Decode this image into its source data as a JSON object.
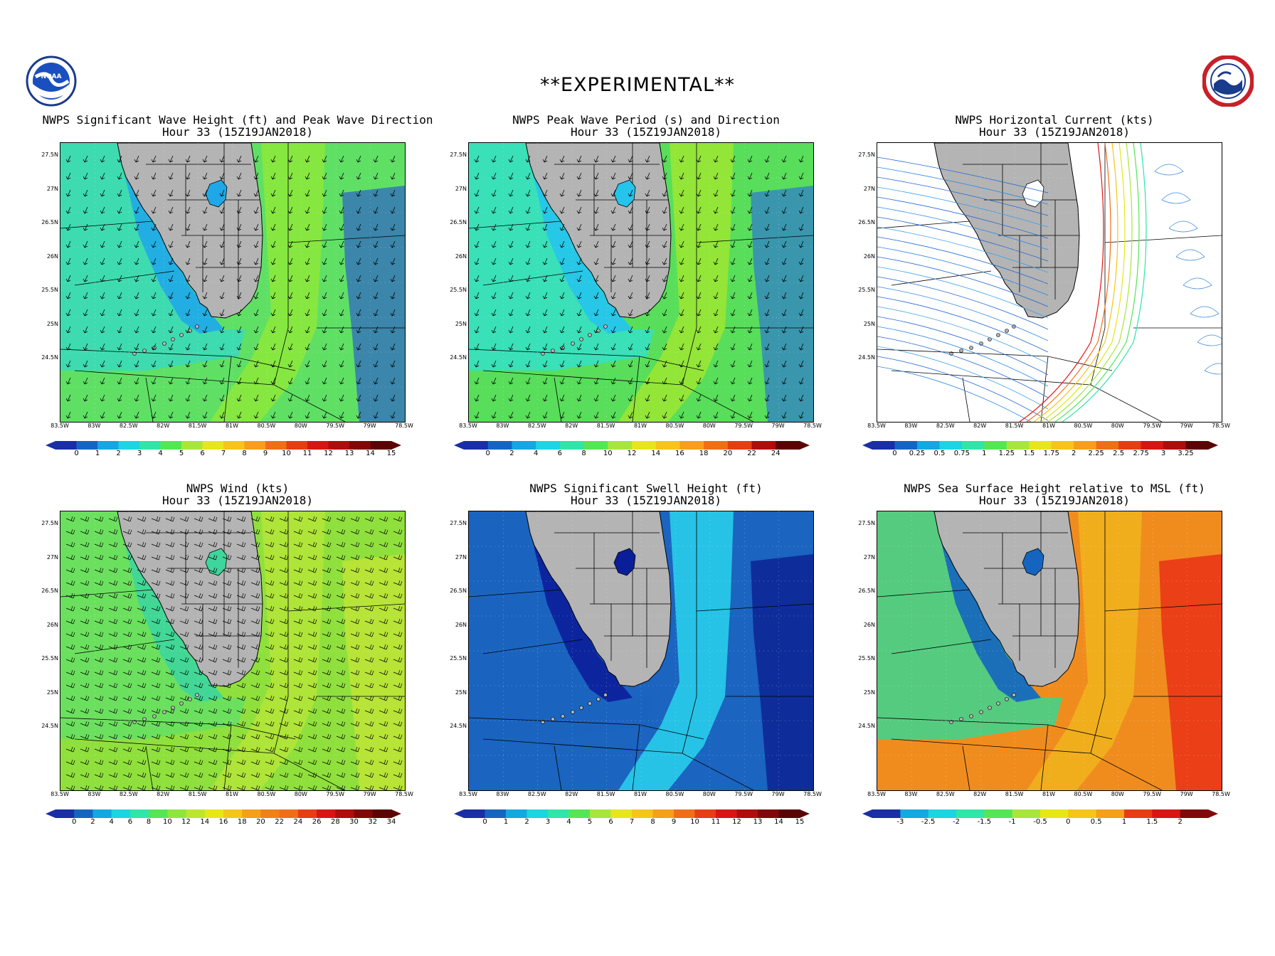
{
  "header": {
    "banner": "**EXPERIMENTAL**",
    "logo_left_icon": "noaa-logo-icon",
    "logo_right_icon": "nws-logo-icon"
  },
  "axes": {
    "lat_labels": [
      "27.5N",
      "27N",
      "26.5N",
      "26N",
      "25.5N",
      "25N",
      "24.5N"
    ],
    "lon_labels": [
      "83.5W",
      "83W",
      "82.5W",
      "82W",
      "81.5W",
      "81W",
      "80.5W",
      "80W",
      "79.5W",
      "79W",
      "78.5W"
    ]
  },
  "panels": [
    {
      "id": "wave-height",
      "title_line1": "NWPS Significant Wave Height (ft) and Peak Wave Direction",
      "title_line2": "Hour 33 (15Z19JAN2018)",
      "colorbar_ticks": [
        "0",
        "1",
        "2",
        "3",
        "4",
        "5",
        "6",
        "7",
        "8",
        "9",
        "10",
        "11",
        "12",
        "13",
        "14",
        "15"
      ],
      "palette": [
        "#1a2ea6",
        "#1565c0",
        "#12a8e0",
        "#19d6e0",
        "#2ee6a8",
        "#55e655",
        "#a8e63a",
        "#e6e61a",
        "#f5c518",
        "#f5a018",
        "#f06e18",
        "#e83c14",
        "#d91414",
        "#b00c0c",
        "#800808",
        "#5a0404"
      ],
      "overlay": "arrows",
      "colors": {
        "sea": "#5fe065",
        "shelf": "#33d9c9",
        "near": "#1fa8e8",
        "deep": "#2c5fc8",
        "stream": "#8de83a"
      }
    },
    {
      "id": "peak-period",
      "title_line1": "NWPS Peak Wave Period (s) and Direction",
      "title_line2": "Hour 33 (15Z19JAN2018)",
      "colorbar_ticks": [
        "0",
        "2",
        "4",
        "6",
        "8",
        "10",
        "12",
        "14",
        "16",
        "18",
        "20",
        "22",
        "24"
      ],
      "palette": [
        "#1a2ea6",
        "#1565c0",
        "#12a8e0",
        "#19d6e0",
        "#2ee6a8",
        "#55e655",
        "#a8e63a",
        "#e6e61a",
        "#f5c518",
        "#f5a018",
        "#f06e18",
        "#e83c14",
        "#b00c0c",
        "#5a0404"
      ],
      "overlay": "arrows",
      "colors": {
        "sea": "#58de5a",
        "shelf": "#2fe0d8",
        "near": "#25c4ec",
        "deep": "#2c78d0",
        "stream": "#9ee632"
      }
    },
    {
      "id": "current",
      "title_line1": "NWPS Horizontal Current (kts)",
      "title_line2": "Hour 33 (15Z19JAN2018)",
      "colorbar_ticks": [
        "0",
        "0.25",
        "0.5",
        "0.75",
        "1",
        "1.25",
        "1.5",
        "1.75",
        "2",
        "2.25",
        "2.5",
        "2.75",
        "3",
        "3.25"
      ],
      "palette": [
        "#1a2ea6",
        "#1565c0",
        "#12a8e0",
        "#19d6e0",
        "#2ee6a8",
        "#55e655",
        "#a8e63a",
        "#e6e61a",
        "#f5c518",
        "#f5a018",
        "#f06e18",
        "#e83c14",
        "#d91414",
        "#b00c0c",
        "#5a0404"
      ],
      "overlay": "streamlines",
      "colors": {
        "sea": "#ffffff",
        "shelf": "#ffffff",
        "near": "#ffffff",
        "deep": "#ffffff",
        "stream": "#ffffff"
      }
    },
    {
      "id": "wind",
      "title_line1": "NWPS Wind (kts)",
      "title_line2": "Hour 33 (15Z19JAN2018)",
      "colorbar_ticks": [
        "0",
        "2",
        "4",
        "6",
        "8",
        "10",
        "12",
        "14",
        "16",
        "18",
        "20",
        "22",
        "24",
        "26",
        "28",
        "30",
        "32",
        "34"
      ],
      "palette": [
        "#1a2ea6",
        "#1565c0",
        "#12a8e0",
        "#19d6e0",
        "#2ee6a8",
        "#55e655",
        "#8ee63a",
        "#bce62e",
        "#e6e61a",
        "#f5c518",
        "#f5a018",
        "#f08018",
        "#f06e18",
        "#e83c14",
        "#d91414",
        "#b00c0c",
        "#800808",
        "#5a0404"
      ],
      "overlay": "barbs",
      "colors": {
        "sea": "#8fe03c",
        "shelf": "#5fe06a",
        "near": "#3ed69c",
        "deep": "#c8e634",
        "stream": "#b5e438"
      }
    },
    {
      "id": "swell",
      "title_line1": "NWPS Significant Swell Height (ft)",
      "title_line2": "Hour 33 (15Z19JAN2018)",
      "colorbar_ticks": [
        "0",
        "1",
        "2",
        "3",
        "4",
        "5",
        "6",
        "7",
        "8",
        "9",
        "10",
        "11",
        "12",
        "13",
        "14",
        "15"
      ],
      "palette": [
        "#1a2ea6",
        "#1565c0",
        "#12a8e0",
        "#19d6e0",
        "#2ee6a8",
        "#55e655",
        "#a8e63a",
        "#e6e61a",
        "#f5c518",
        "#f5a018",
        "#f06e18",
        "#e83c14",
        "#d91414",
        "#b00c0c",
        "#800808",
        "#5a0404"
      ],
      "overlay": "none",
      "colors": {
        "sea": "#1b64c0",
        "shelf": "#1b64c0",
        "near": "#0b1e9a",
        "deep": "#0a168a",
        "stream": "#28d4ec"
      }
    },
    {
      "id": "sea-surface-height",
      "title_line1": "NWPS Sea Surface Height relative to MSL (ft)",
      "title_line2": "Hour 33 (15Z19JAN2018)",
      "colorbar_ticks": [
        "-3",
        "-2.5",
        "-2",
        "-1.5",
        "-1",
        "-0.5",
        "0",
        "0.5",
        "1",
        "1.5",
        "2"
      ],
      "palette": [
        "#1a2ea6",
        "#12a8e0",
        "#19d6e0",
        "#2ee6a8",
        "#55e655",
        "#a8e63a",
        "#e6e61a",
        "#f5c518",
        "#f5a018",
        "#e83c14",
        "#d91414",
        "#800808"
      ],
      "overlay": "none",
      "colors": {
        "sea": "#f08c1e",
        "shelf": "#22e0a0",
        "near": "#1565c0",
        "deep": "#e81e14",
        "stream": "#f0b41c"
      }
    }
  ]
}
